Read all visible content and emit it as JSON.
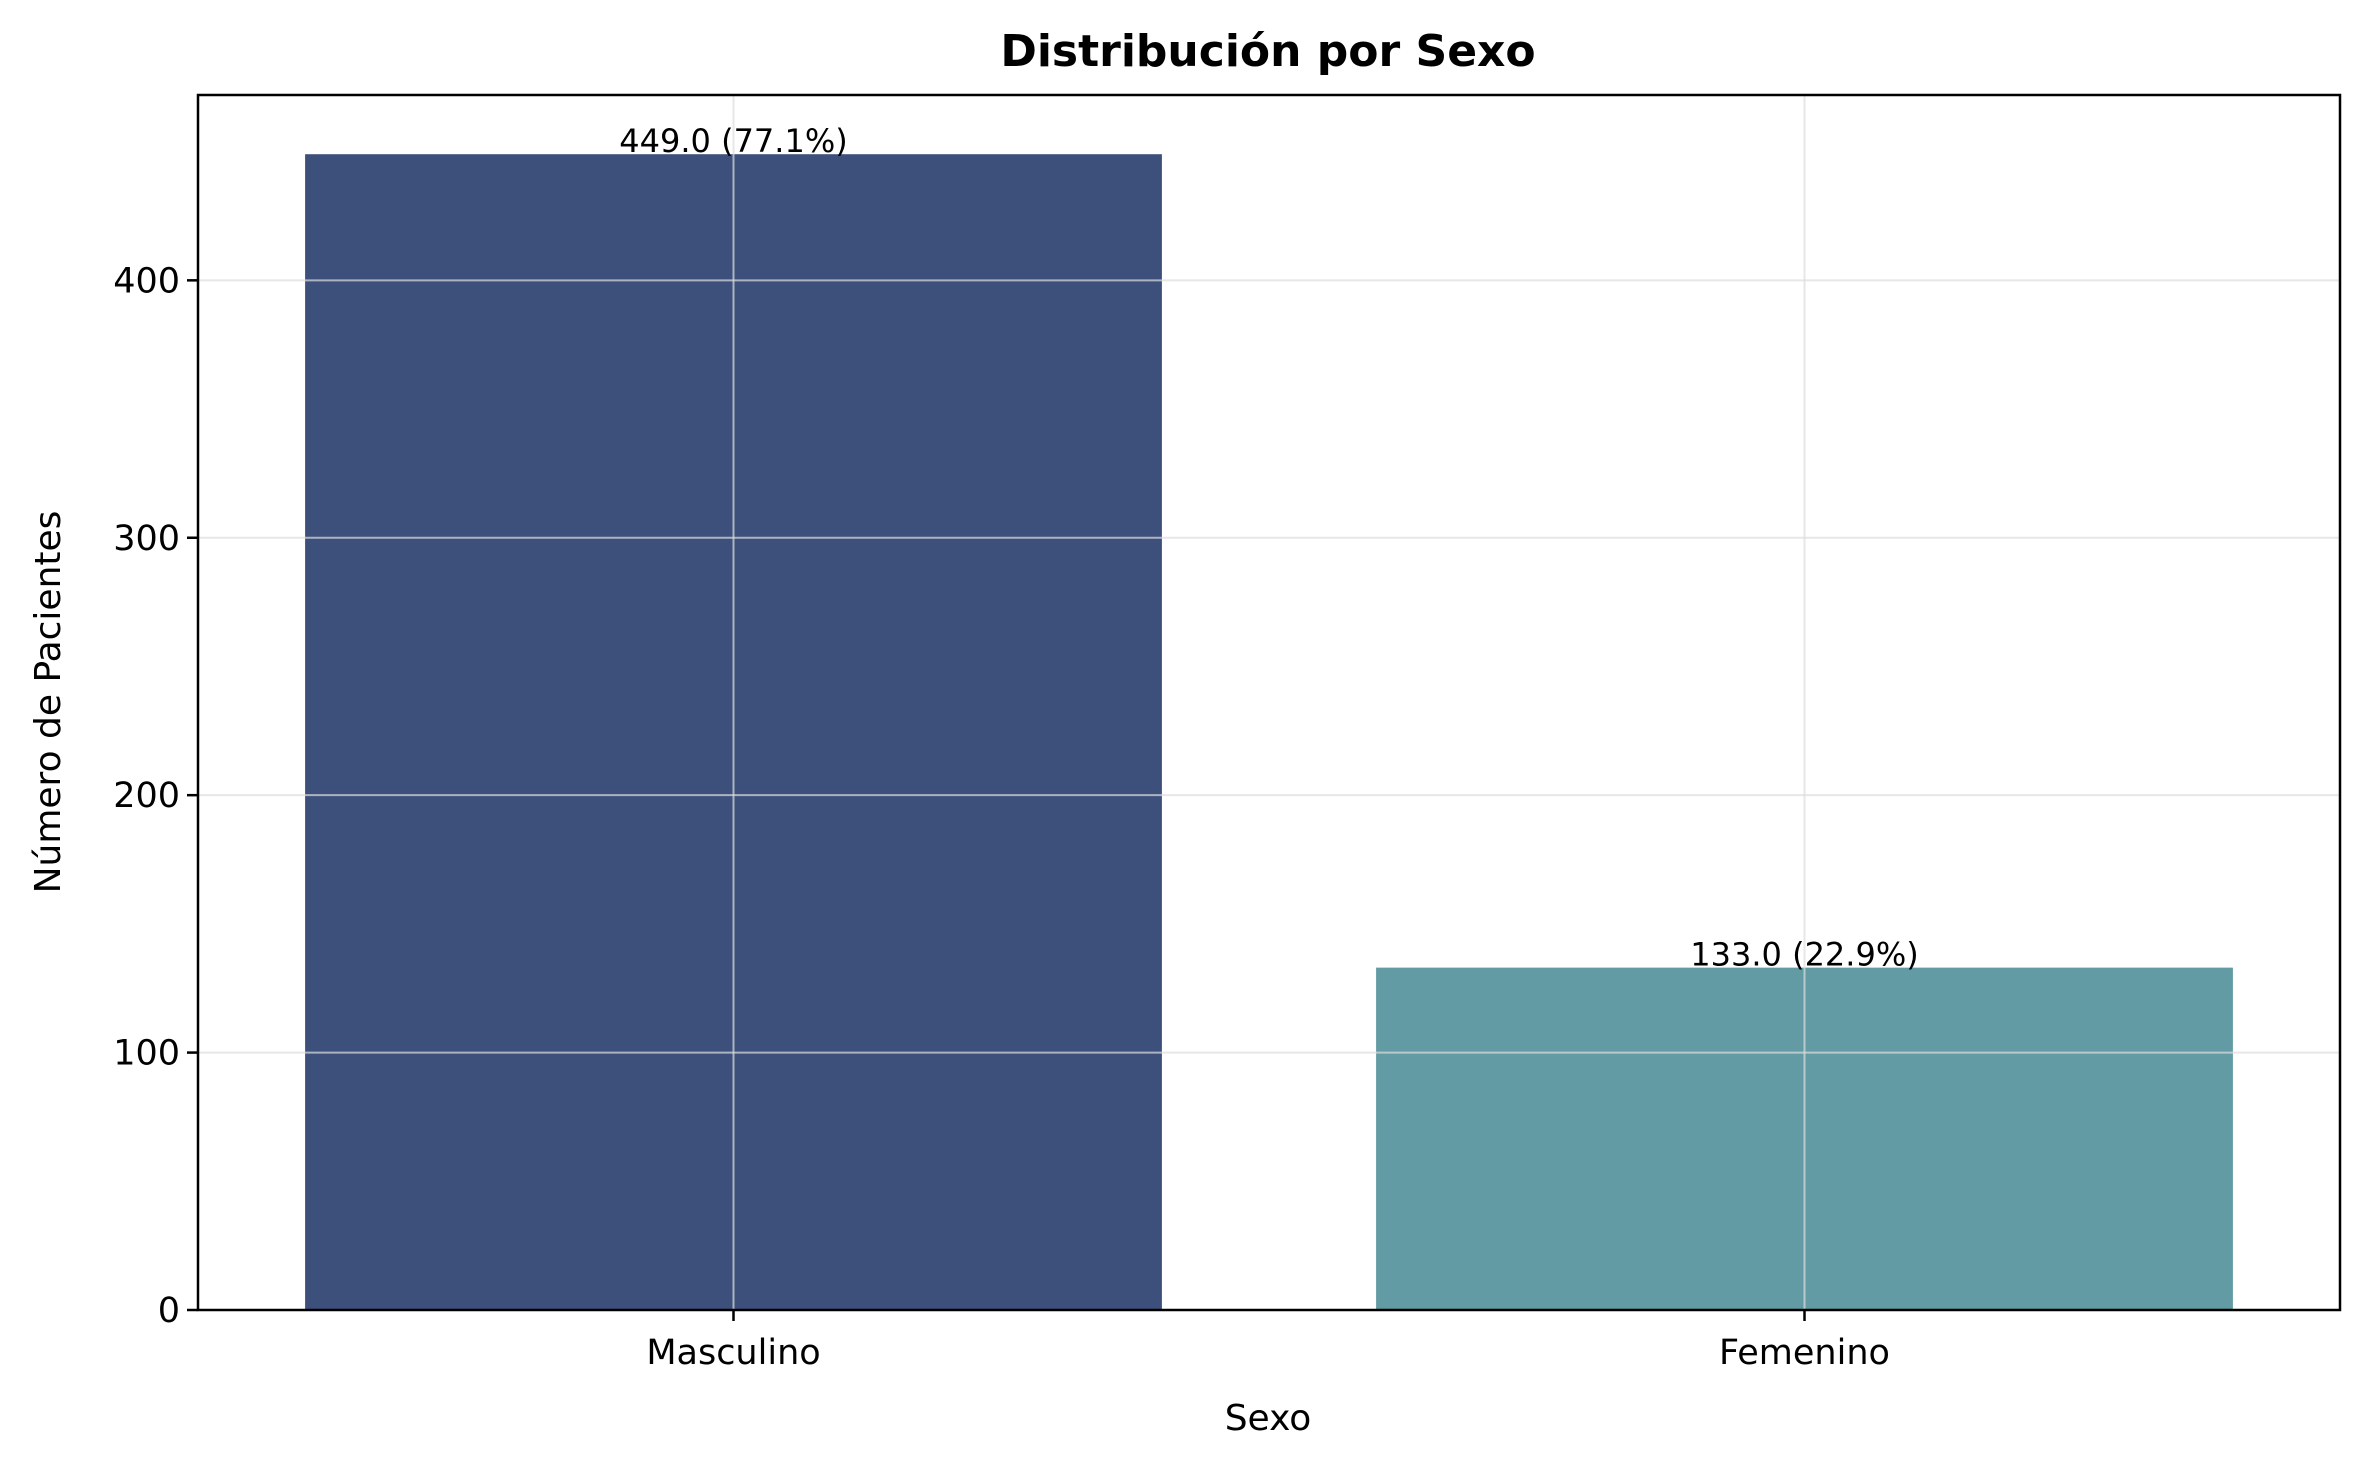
{
  "chart_data": {
    "type": "bar",
    "title": "Distribución por Sexo",
    "xlabel": "Sexo",
    "ylabel": "Número de Pacientes",
    "categories": [
      "Masculino",
      "Femenino"
    ],
    "values": [
      449,
      133
    ],
    "data_labels": [
      "449.0 (77.1%)",
      "133.0 (22.9%)"
    ],
    "colors": [
      "#3d507c",
      "#639ba4"
    ],
    "ylim": [
      0,
      472
    ],
    "yticks": [
      0,
      100,
      200,
      300,
      400
    ],
    "ytick_labels": [
      "0",
      "100",
      "200",
      "300",
      "400"
    ],
    "grid": true
  }
}
